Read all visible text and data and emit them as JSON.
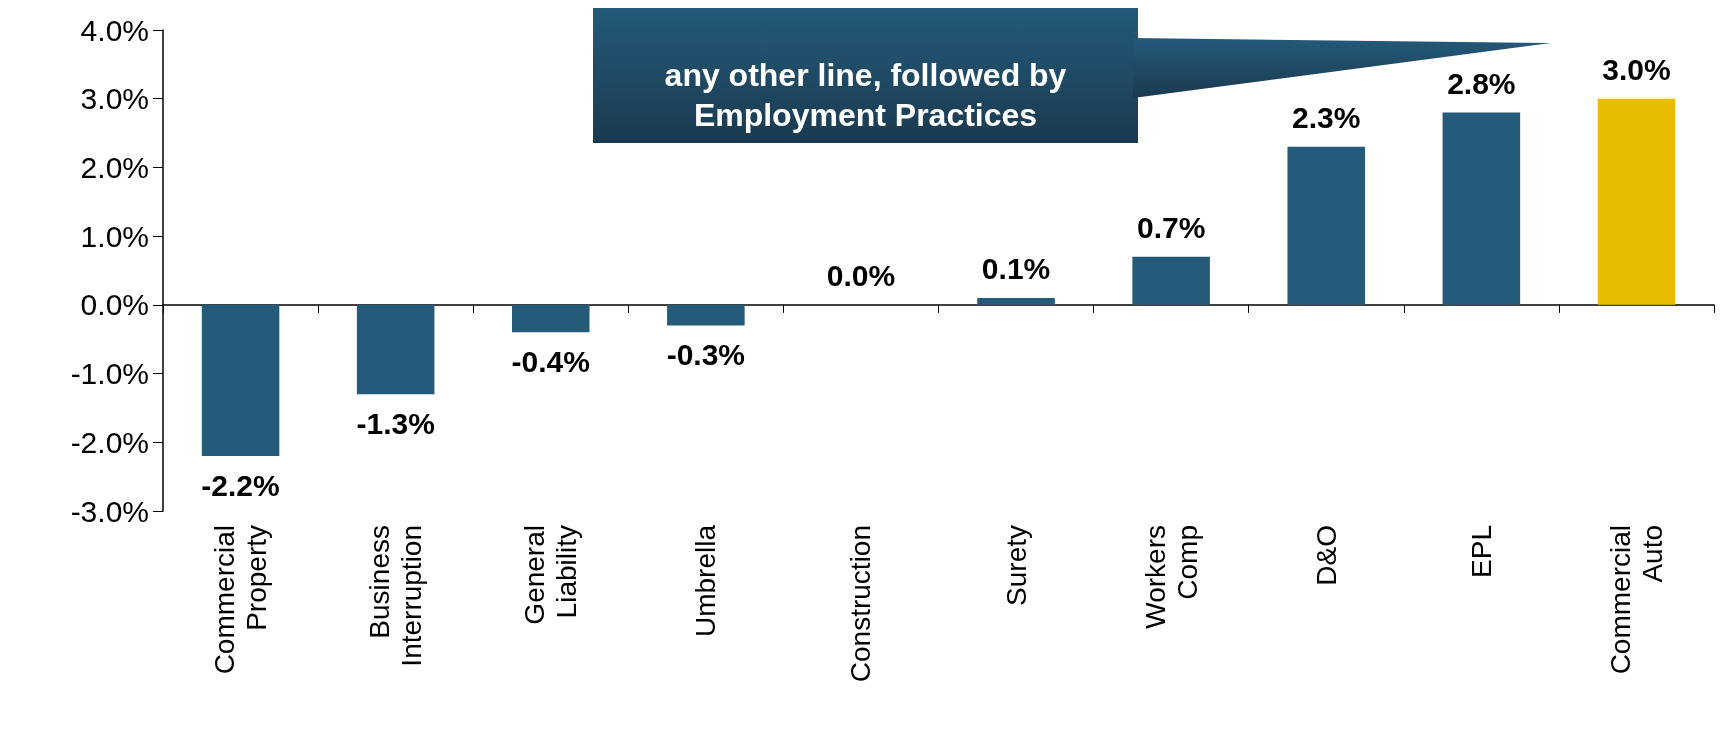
{
  "chart_data": {
    "type": "bar",
    "categories": [
      "Commercial Property",
      "Business Interruption",
      "General Liability",
      "Umbrella",
      "Construction",
      "Surety",
      "Workers Comp",
      "D&O",
      "EPL",
      "Commercial Auto"
    ],
    "values": [
      -2.2,
      -1.3,
      -0.4,
      -0.3,
      0.0,
      0.1,
      0.7,
      2.3,
      2.8,
      3.0
    ],
    "colors": [
      "#245a7a",
      "#245a7a",
      "#245a7a",
      "#245a7a",
      "#245a7a",
      "#245a7a",
      "#245a7a",
      "#245a7a",
      "#245a7a",
      "#e8bc00"
    ],
    "value_labels": [
      "-2.2%",
      "-1.3%",
      "-0.4%",
      "-0.3%",
      "0.0%",
      "0.1%",
      "0.7%",
      "2.3%",
      "2.8%",
      "3.0%"
    ],
    "ylim": [
      -3,
      4
    ],
    "yticks": [
      {
        "value": -3,
        "label": "-3.0%"
      },
      {
        "value": -2,
        "label": "-2.0%"
      },
      {
        "value": -1,
        "label": "-1.0%"
      },
      {
        "value": 0,
        "label": "0.0%"
      },
      {
        "value": 1,
        "label": "1.0%"
      },
      {
        "value": 2,
        "label": "2.0%"
      },
      {
        "value": 3,
        "label": "3.0%"
      },
      {
        "value": 4,
        "label": "4.0%"
      }
    ],
    "annotations": [
      "any other line, followed by Employment Practices"
    ]
  }
}
